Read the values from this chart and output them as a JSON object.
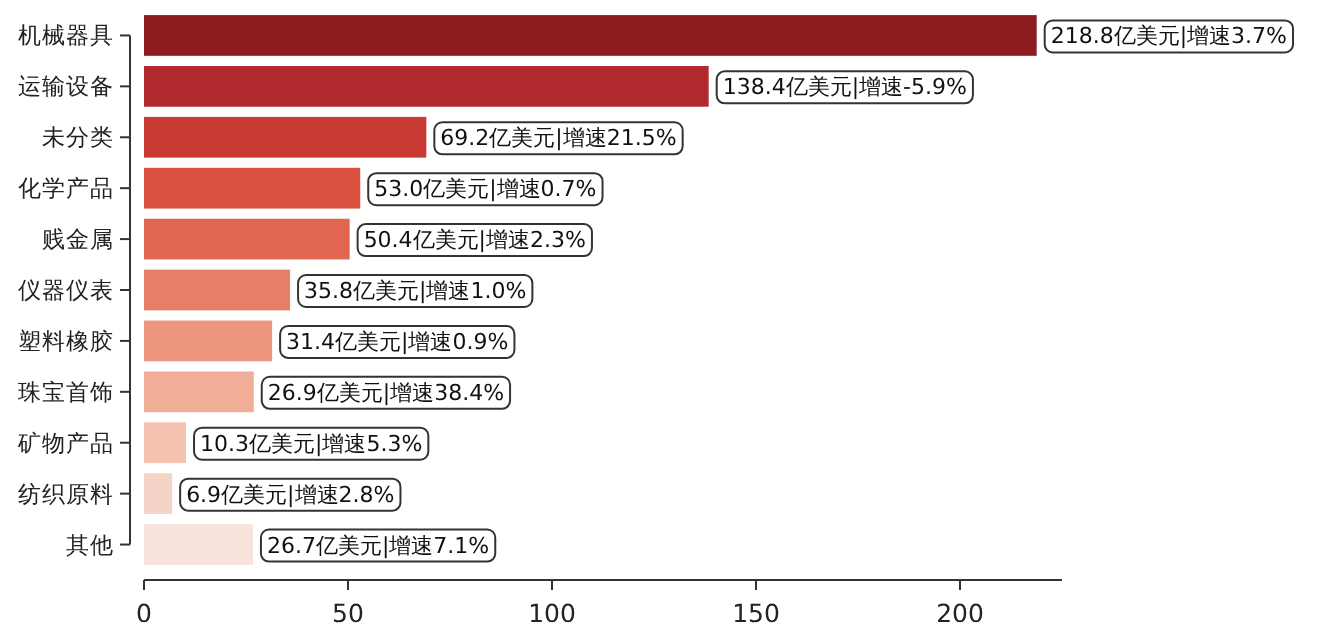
{
  "chart_data": {
    "type": "bar",
    "orientation": "horizontal",
    "categories": [
      "机械器具",
      "运输设备",
      "未分类",
      "化学产品",
      "贱金属",
      "仪器仪表",
      "塑料橡胶",
      "珠宝首饰",
      "矿物产品",
      "纺织原料",
      "其他"
    ],
    "values": [
      218.8,
      138.4,
      69.2,
      53.0,
      50.4,
      35.8,
      31.4,
      26.9,
      10.3,
      6.9,
      26.7
    ],
    "colors": [
      "#8e1b20",
      "#b02a2e",
      "#c93a35",
      "#d9503f",
      "#e06650",
      "#e67f65",
      "#ec967f",
      "#f0ad98",
      "#f3c2b1",
      "#f5d4c8",
      "#f8e4dc"
    ],
    "value_labels": [
      "218.8亿美元|增速3.7%",
      "138.4亿美元|增速-5.9%",
      "69.2亿美元|增速21.5%",
      "53.0亿美元|增速0.7%",
      "50.4亿美元|增速2.3%",
      "35.8亿美元|增速1.0%",
      "31.4亿美元|增速0.9%",
      "26.9亿美元|增速38.4%",
      "10.3亿美元|增速5.3%",
      "6.9亿美元|增速2.8%",
      "26.7亿美元|增速7.1%"
    ],
    "xlim": [
      0,
      225
    ],
    "xticks": [
      0,
      50,
      100,
      150,
      200
    ],
    "grid": false
  }
}
